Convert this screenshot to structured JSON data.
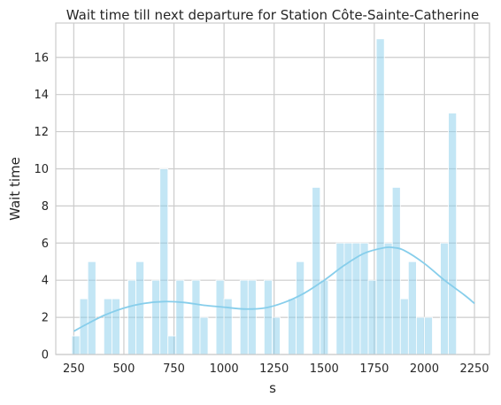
{
  "chart_data": {
    "type": "bar",
    "title": "Wait time till next departure for Station Côte-Sainte-Catherine",
    "xlabel": "s",
    "ylabel": "Wait time",
    "xlim": [
      160,
      2325
    ],
    "ylim": [
      0,
      17.85
    ],
    "xticks": [
      250,
      500,
      750,
      1000,
      1250,
      1500,
      1750,
      2000,
      2250
    ],
    "yticks": [
      0,
      2,
      4,
      6,
      8,
      10,
      12,
      14,
      16
    ],
    "grid": true,
    "bin_width": 40,
    "bin_start": 240,
    "counts": [
      1,
      3,
      5,
      0,
      3,
      3,
      0,
      4,
      5,
      0,
      4,
      10,
      1,
      4,
      0,
      4,
      2,
      0,
      4,
      3,
      0,
      4,
      4,
      0,
      4,
      2,
      0,
      3,
      5,
      0,
      9,
      4,
      0,
      6,
      6,
      6,
      6,
      4,
      17,
      6,
      9,
      3,
      5,
      2,
      2,
      0,
      6,
      13
    ],
    "kde": {
      "x": [
        250,
        300,
        400,
        500,
        600,
        700,
        800,
        900,
        1000,
        1100,
        1200,
        1300,
        1400,
        1500,
        1600,
        1700,
        1800,
        1850,
        1900,
        2000,
        2100,
        2200,
        2250
      ],
      "y": [
        1.25,
        1.55,
        2.1,
        2.5,
        2.75,
        2.85,
        2.8,
        2.65,
        2.55,
        2.45,
        2.5,
        2.8,
        3.3,
        4.0,
        4.8,
        5.45,
        5.75,
        5.75,
        5.6,
        4.9,
        4.0,
        3.2,
        2.75
      ]
    }
  }
}
